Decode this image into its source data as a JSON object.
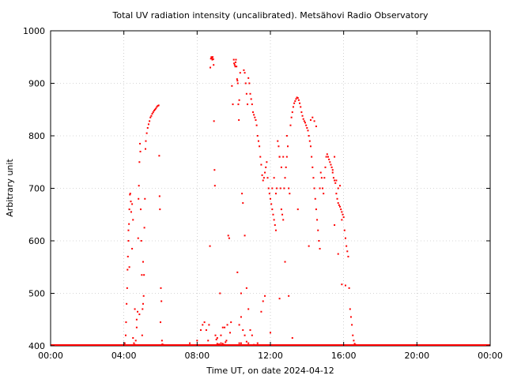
{
  "chart_data": {
    "type": "scatter",
    "title": "Total UV radiation intensity (uncalibrated). Metsähovi Radio Observatory",
    "xlabel": "Time UT, on date 2024-04-12",
    "ylabel": "Arbitrary unit",
    "xlim": [
      0,
      24
    ],
    "ylim": [
      400,
      1000
    ],
    "x_ticks": [
      0,
      4,
      8,
      12,
      16,
      20,
      24
    ],
    "x_tick_labels": [
      "00:00",
      "04:00",
      "08:00",
      "12:00",
      "16:00",
      "20:00",
      "00:00"
    ],
    "y_ticks": [
      400,
      500,
      600,
      700,
      800,
      900,
      1000
    ],
    "y_tick_labels": [
      "400",
      "500",
      "600",
      "700",
      "800",
      "900",
      "1000"
    ],
    "grid": true,
    "color": "#ff0000",
    "series": [
      {
        "points": [
          [
            4.05,
            405
          ],
          [
            4.1,
            420
          ],
          [
            4.12,
            445
          ],
          [
            4.15,
            480
          ],
          [
            4.18,
            510
          ],
          [
            4.2,
            545
          ],
          [
            4.22,
            570
          ],
          [
            4.25,
            600
          ],
          [
            4.28,
            632
          ],
          [
            4.3,
            660
          ],
          [
            4.33,
            688
          ],
          [
            4.35,
            690
          ],
          [
            4.38,
            675
          ],
          [
            4.4,
            655
          ],
          [
            4.45,
            585
          ],
          [
            4.5,
            415
          ],
          [
            4.55,
            405
          ],
          [
            4.6,
            402
          ],
          [
            4.65,
            410
          ],
          [
            4.7,
            435
          ],
          [
            4.75,
            465
          ],
          [
            4.78,
            605
          ],
          [
            4.8,
            680
          ],
          [
            4.82,
            705
          ],
          [
            4.85,
            750
          ],
          [
            4.88,
            785
          ],
          [
            4.9,
            770
          ],
          [
            4.92,
            660
          ],
          [
            4.95,
            600
          ],
          [
            4.98,
            535
          ],
          [
            5.0,
            420
          ],
          [
            5.02,
            470
          ],
          [
            5.05,
            480
          ],
          [
            5.08,
            495
          ],
          [
            5.1,
            535
          ],
          [
            5.12,
            625
          ],
          [
            5.15,
            680
          ],
          [
            5.18,
            775
          ],
          [
            5.2,
            790
          ],
          [
            5.25,
            805
          ],
          [
            5.3,
            815
          ],
          [
            5.35,
            822
          ],
          [
            5.4,
            828
          ],
          [
            5.45,
            835
          ],
          [
            5.5,
            838
          ],
          [
            5.55,
            842
          ],
          [
            5.6,
            845
          ],
          [
            5.65,
            848
          ],
          [
            5.7,
            850
          ],
          [
            5.75,
            852
          ],
          [
            5.8,
            855
          ],
          [
            5.85,
            857
          ],
          [
            5.9,
            858
          ],
          [
            5.93,
            762
          ],
          [
            5.95,
            685
          ],
          [
            5.97,
            660
          ],
          [
            6.0,
            445
          ],
          [
            6.02,
            510
          ],
          [
            6.05,
            485
          ],
          [
            6.08,
            410
          ],
          [
            6.1,
            403
          ],
          [
            6.15,
            402
          ],
          [
            7.6,
            405
          ],
          [
            8.0,
            410
          ],
          [
            8.2,
            430
          ],
          [
            8.3,
            440
          ],
          [
            8.4,
            445
          ],
          [
            8.5,
            430
          ],
          [
            8.6,
            410
          ],
          [
            8.65,
            440
          ],
          [
            8.7,
            590
          ],
          [
            8.72,
            930
          ],
          [
            8.75,
            947
          ],
          [
            8.78,
            950
          ],
          [
            8.8,
            948
          ],
          [
            8.83,
            945
          ],
          [
            8.85,
            950
          ],
          [
            8.88,
            946
          ],
          [
            8.9,
            935
          ],
          [
            8.92,
            828
          ],
          [
            8.95,
            735
          ],
          [
            8.97,
            705
          ],
          [
            9.0,
            420
          ],
          [
            9.05,
            412
          ],
          [
            9.1,
            404
          ],
          [
            9.2,
            403
          ],
          [
            9.25,
            500
          ],
          [
            9.3,
            405
          ],
          [
            9.4,
            404
          ],
          [
            9.5,
            402
          ],
          [
            9.55,
            407
          ],
          [
            9.6,
            410
          ],
          [
            9.65,
            440
          ],
          [
            9.7,
            610
          ],
          [
            9.75,
            605
          ],
          [
            9.8,
            425
          ],
          [
            9.85,
            445
          ],
          [
            9.9,
            895
          ],
          [
            9.95,
            860
          ],
          [
            10.0,
            945
          ],
          [
            10.02,
            938
          ],
          [
            10.05,
            935
          ],
          [
            10.08,
            932
          ],
          [
            10.1,
            940
          ],
          [
            10.12,
            945
          ],
          [
            10.15,
            932
          ],
          [
            10.18,
            908
          ],
          [
            10.2,
            905
          ],
          [
            10.22,
            900
          ],
          [
            10.25,
            860
          ],
          [
            10.28,
            830
          ],
          [
            10.3,
            868
          ],
          [
            10.35,
            920
          ],
          [
            10.4,
            500
          ],
          [
            10.45,
            690
          ],
          [
            10.5,
            672
          ],
          [
            10.55,
            925
          ],
          [
            10.6,
            920
          ],
          [
            10.65,
            900
          ],
          [
            10.7,
            880
          ],
          [
            10.75,
            860
          ],
          [
            10.8,
            910
          ],
          [
            10.85,
            900
          ],
          [
            10.9,
            880
          ],
          [
            10.95,
            870
          ],
          [
            11.0,
            860
          ],
          [
            11.05,
            845
          ],
          [
            11.1,
            840
          ],
          [
            11.15,
            835
          ],
          [
            11.2,
            830
          ],
          [
            11.25,
            820
          ],
          [
            11.3,
            800
          ],
          [
            11.35,
            790
          ],
          [
            11.4,
            780
          ],
          [
            11.45,
            760
          ],
          [
            11.5,
            745
          ],
          [
            11.55,
            725
          ],
          [
            11.6,
            715
          ],
          [
            11.65,
            720
          ],
          [
            11.7,
            730
          ],
          [
            11.75,
            740
          ],
          [
            11.8,
            750
          ],
          [
            11.85,
            720
          ],
          [
            11.9,
            700
          ],
          [
            11.95,
            690
          ],
          [
            12.0,
            680
          ],
          [
            12.05,
            670
          ],
          [
            12.1,
            660
          ],
          [
            12.15,
            650
          ],
          [
            12.2,
            640
          ],
          [
            12.25,
            630
          ],
          [
            12.3,
            620
          ],
          [
            12.35,
            700
          ],
          [
            12.4,
            790
          ],
          [
            12.45,
            780
          ],
          [
            12.5,
            760
          ],
          [
            12.55,
            700
          ],
          [
            12.6,
            660
          ],
          [
            12.65,
            650
          ],
          [
            12.7,
            640
          ],
          [
            12.75,
            700
          ],
          [
            12.8,
            720
          ],
          [
            12.85,
            740
          ],
          [
            12.9,
            760
          ],
          [
            12.95,
            780
          ],
          [
            13.0,
            700
          ],
          [
            13.05,
            690
          ],
          [
            13.1,
            820
          ],
          [
            13.15,
            835
          ],
          [
            13.2,
            845
          ],
          [
            13.25,
            855
          ],
          [
            13.3,
            862
          ],
          [
            13.35,
            866
          ],
          [
            13.4,
            870
          ],
          [
            13.45,
            873
          ],
          [
            13.5,
            872
          ],
          [
            13.55,
            868
          ],
          [
            13.6,
            862
          ],
          [
            13.65,
            855
          ],
          [
            13.7,
            845
          ],
          [
            13.75,
            838
          ],
          [
            13.8,
            832
          ],
          [
            13.85,
            828
          ],
          [
            13.9,
            825
          ],
          [
            13.95,
            820
          ],
          [
            14.0,
            815
          ],
          [
            14.05,
            810
          ],
          [
            14.1,
            800
          ],
          [
            14.15,
            790
          ],
          [
            14.2,
            780
          ],
          [
            14.25,
            760
          ],
          [
            14.3,
            740
          ],
          [
            14.35,
            720
          ],
          [
            14.4,
            700
          ],
          [
            14.45,
            680
          ],
          [
            14.5,
            660
          ],
          [
            14.55,
            640
          ],
          [
            14.6,
            620
          ],
          [
            14.65,
            600
          ],
          [
            14.7,
            700
          ],
          [
            14.75,
            730
          ],
          [
            14.8,
            720
          ],
          [
            14.85,
            700
          ],
          [
            14.9,
            690
          ],
          [
            14.95,
            720
          ],
          [
            15.0,
            740
          ],
          [
            15.05,
            760
          ],
          [
            15.1,
            765
          ],
          [
            15.15,
            760
          ],
          [
            15.2,
            755
          ],
          [
            15.25,
            750
          ],
          [
            15.3,
            745
          ],
          [
            15.35,
            740
          ],
          [
            15.4,
            730
          ],
          [
            15.45,
            720
          ],
          [
            15.5,
            715
          ],
          [
            15.55,
            710
          ],
          [
            15.6,
            690
          ],
          [
            15.65,
            680
          ],
          [
            15.7,
            672
          ],
          [
            15.75,
            668
          ],
          [
            15.8,
            665
          ],
          [
            15.85,
            660
          ],
          [
            15.9,
            655
          ],
          [
            15.95,
            650
          ],
          [
            16.0,
            645
          ],
          [
            16.05,
            620
          ],
          [
            16.1,
            605
          ],
          [
            16.15,
            590
          ],
          [
            16.2,
            580
          ],
          [
            16.25,
            570
          ],
          [
            16.3,
            510
          ],
          [
            16.35,
            470
          ],
          [
            16.4,
            455
          ],
          [
            16.45,
            440
          ],
          [
            16.5,
            420
          ],
          [
            16.55,
            410
          ],
          [
            16.6,
            404
          ],
          [
            16.65,
            402
          ],
          [
            10.6,
            610
          ],
          [
            10.7,
            510
          ],
          [
            10.8,
            470
          ],
          [
            10.9,
            430
          ],
          [
            11.0,
            420
          ],
          [
            11.1,
            402
          ],
          [
            12.5,
            490
          ],
          [
            13.0,
            495
          ],
          [
            13.2,
            415
          ],
          [
            12.0,
            425
          ],
          [
            12.8,
            560
          ],
          [
            13.5,
            660
          ],
          [
            14.1,
            590
          ],
          [
            14.7,
            585
          ],
          [
            15.5,
            630
          ],
          [
            15.7,
            575
          ],
          [
            15.9,
            517
          ],
          [
            16.1,
            515
          ],
          [
            10.3,
            405
          ],
          [
            10.4,
            405
          ],
          [
            10.5,
            430
          ],
          [
            10.6,
            420
          ],
          [
            10.7,
            408
          ],
          [
            10.8,
            405
          ],
          [
            9.1,
            415
          ],
          [
            9.3,
            420
          ],
          [
            9.4,
            435
          ],
          [
            9.5,
            435
          ],
          [
            10.2,
            540
          ],
          [
            10.3,
            440
          ],
          [
            10.4,
            455
          ],
          [
            11.3,
            405
          ],
          [
            11.5,
            465
          ],
          [
            11.6,
            485
          ],
          [
            11.7,
            495
          ],
          [
            12.1,
            700
          ],
          [
            12.2,
            720
          ],
          [
            12.3,
            690
          ],
          [
            12.5,
            760
          ],
          [
            12.6,
            740
          ],
          [
            12.7,
            760
          ],
          [
            12.9,
            800
          ],
          [
            14.2,
            830
          ],
          [
            14.3,
            835
          ],
          [
            14.4,
            828
          ],
          [
            14.5,
            818
          ],
          [
            15.4,
            735
          ],
          [
            15.5,
            760
          ],
          [
            15.6,
            715
          ],
          [
            15.7,
            700
          ],
          [
            15.8,
            705
          ],
          [
            15.9,
            640
          ],
          [
            4.25,
            620
          ],
          [
            4.3,
            550
          ],
          [
            4.45,
            670
          ],
          [
            4.5,
            640
          ],
          [
            4.6,
            470
          ],
          [
            4.7,
            450
          ],
          [
            4.85,
            460
          ],
          [
            5.05,
            560
          ]
        ]
      }
    ]
  }
}
